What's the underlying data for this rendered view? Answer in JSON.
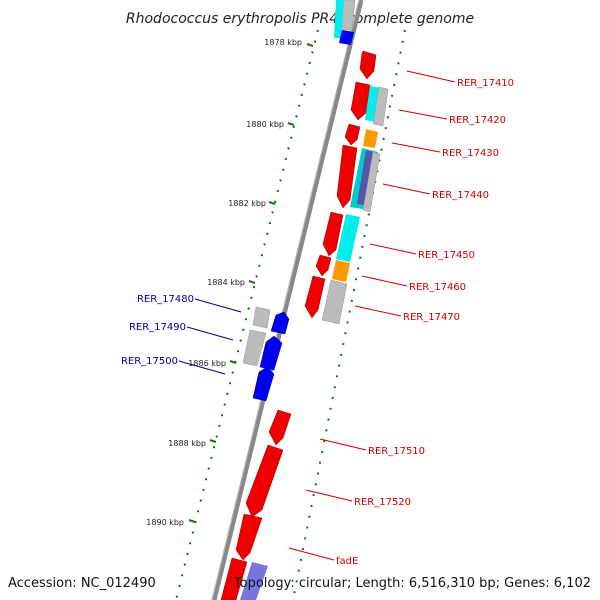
{
  "title": "Rhodococcus erythropolis PR4, complete genome",
  "footer": {
    "accession": "Accession: NC_012490",
    "topology": "Topology: circular; Length: 6,516,310 bp; Genes: 6,102"
  },
  "colors": {
    "backbone": "#888888",
    "tick": "#117711",
    "forward_label": "#cc0000",
    "reverse_label": "#000099",
    "cds_red": "#ee0000",
    "cds_blue": "#0000ee",
    "pseudo_grey": "#bbbbbb",
    "rna_cyan": "#00eeee",
    "rna_orange": "#ff9900",
    "purple": "#7777dd"
  },
  "scale_ticks": [
    {
      "label": "1878 kbp"
    },
    {
      "label": "1880 kbp"
    },
    {
      "label": "1882 kbp"
    },
    {
      "label": "1884 kbp"
    },
    {
      "label": "1886 kbp"
    },
    {
      "label": "1888 kbp"
    },
    {
      "label": "1890 kbp"
    }
  ],
  "forward_genes": [
    {
      "label": "RER_17410"
    },
    {
      "label": "RER_17420"
    },
    {
      "label": "RER_17430"
    },
    {
      "label": "RER_17440"
    },
    {
      "label": "RER_17450"
    },
    {
      "label": "RER_17460"
    },
    {
      "label": "RER_17470"
    },
    {
      "label": "RER_17510"
    },
    {
      "label": "RER_17520"
    },
    {
      "label": "fadE"
    }
  ],
  "reverse_genes": [
    {
      "label": "RER_17480"
    },
    {
      "label": "RER_17490"
    },
    {
      "label": "RER_17500"
    }
  ]
}
